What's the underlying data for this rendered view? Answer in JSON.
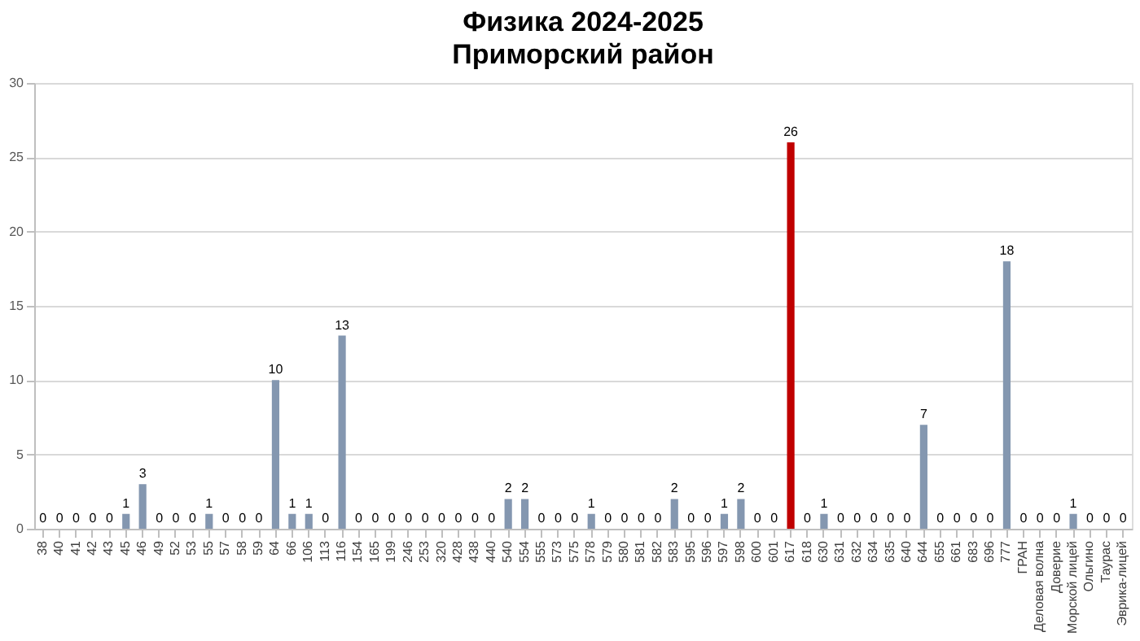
{
  "chart_data": {
    "type": "bar",
    "title": "Физика 2024-2025",
    "subtitle": "Приморский район",
    "categories": [
      "38",
      "40",
      "41",
      "42",
      "43",
      "45",
      "46",
      "49",
      "52",
      "53",
      "55",
      "57",
      "58",
      "59",
      "64",
      "66",
      "106",
      "113",
      "116",
      "154",
      "165",
      "199",
      "246",
      "253",
      "320",
      "428",
      "438",
      "440",
      "540",
      "554",
      "555",
      "573",
      "575",
      "578",
      "579",
      "580",
      "581",
      "582",
      "583",
      "595",
      "596",
      "597",
      "598",
      "600",
      "601",
      "617",
      "618",
      "630",
      "631",
      "632",
      "634",
      "635",
      "640",
      "644",
      "655",
      "661",
      "683",
      "696",
      "777",
      "ГРАН",
      "Деловая волна",
      "Доверие",
      "Морской лицей",
      "Ольгино",
      "Таурас",
      "Эврика-лицей"
    ],
    "values": [
      0,
      0,
      0,
      0,
      0,
      1,
      3,
      0,
      0,
      0,
      1,
      0,
      0,
      0,
      10,
      1,
      1,
      0,
      13,
      0,
      0,
      0,
      0,
      0,
      0,
      0,
      0,
      0,
      2,
      2,
      0,
      0,
      0,
      1,
      0,
      0,
      0,
      0,
      2,
      0,
      0,
      1,
      2,
      0,
      0,
      26,
      0,
      1,
      0,
      0,
      0,
      0,
      0,
      7,
      0,
      0,
      0,
      0,
      18,
      0,
      0,
      0,
      1,
      0,
      0,
      0
    ],
    "colors": [
      "#8497b0",
      "#8497b0",
      "#8497b0",
      "#8497b0",
      "#8497b0",
      "#8497b0",
      "#8497b0",
      "#8497b0",
      "#8497b0",
      "#8497b0",
      "#8497b0",
      "#8497b0",
      "#8497b0",
      "#8497b0",
      "#8497b0",
      "#8497b0",
      "#8497b0",
      "#8497b0",
      "#8497b0",
      "#8497b0",
      "#8497b0",
      "#8497b0",
      "#8497b0",
      "#8497b0",
      "#8497b0",
      "#8497b0",
      "#8497b0",
      "#8497b0",
      "#8497b0",
      "#8497b0",
      "#8497b0",
      "#8497b0",
      "#8497b0",
      "#8497b0",
      "#8497b0",
      "#8497b0",
      "#8497b0",
      "#8497b0",
      "#8497b0",
      "#8497b0",
      "#8497b0",
      "#8497b0",
      "#8497b0",
      "#8497b0",
      "#8497b0",
      "#c00000",
      "#8497b0",
      "#8497b0",
      "#8497b0",
      "#8497b0",
      "#8497b0",
      "#8497b0",
      "#8497b0",
      "#8497b0",
      "#8497b0",
      "#8497b0",
      "#8497b0",
      "#8497b0",
      "#8497b0",
      "#8497b0",
      "#8497b0",
      "#8497b0",
      "#8497b0",
      "#8497b0",
      "#8497b0",
      "#8497b0"
    ],
    "ylim": [
      0,
      30
    ],
    "yticks": [
      0,
      5,
      10,
      15,
      20,
      25,
      30
    ],
    "grid": "y",
    "data_labels": true
  }
}
